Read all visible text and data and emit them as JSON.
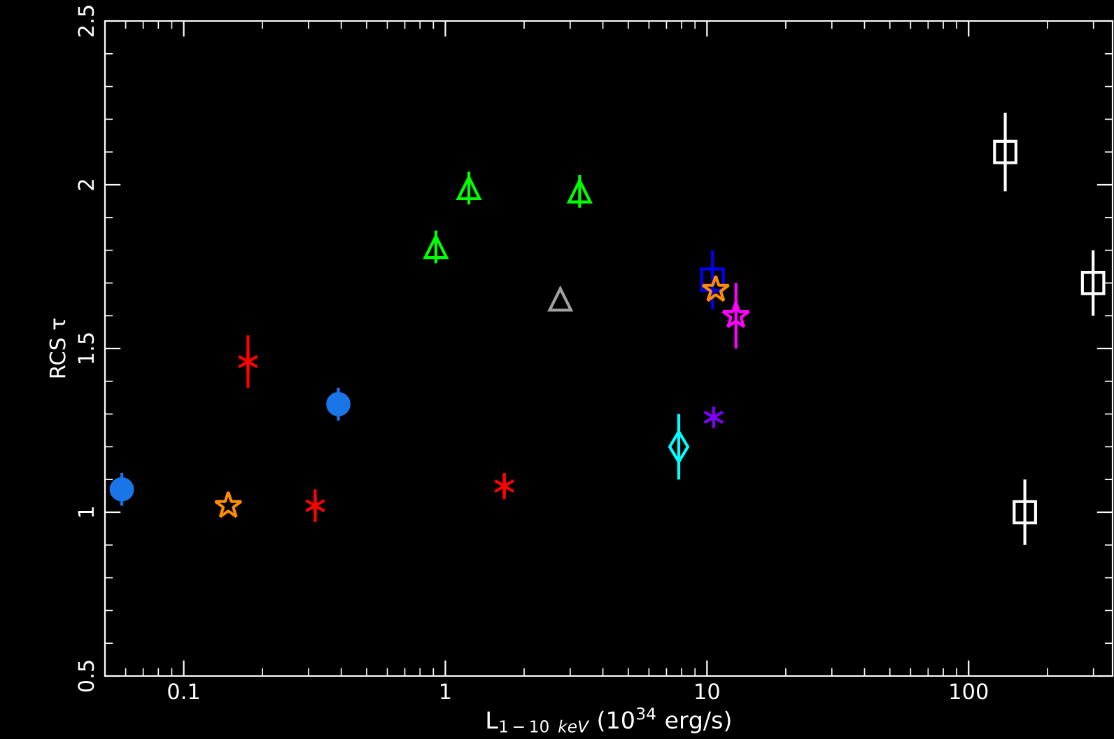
{
  "chart_data": {
    "type": "scatter",
    "xlabel": "L$_{1−10}$ $_{keV}$ (10$^{34}$ erg/s)",
    "ylabel": "RCS τ",
    "log": "x",
    "xlim": [
      0.05,
      355
    ],
    "ylim": [
      0.5,
      2.5
    ],
    "xticks": [
      0.1,
      1,
      10,
      100
    ],
    "yticks": [
      0.5,
      1,
      1.5,
      2,
      2.5
    ],
    "grid": false,
    "legend": false,
    "series": [
      {
        "color": "#1a75e8",
        "marker": "circle",
        "x": [
          0.058,
          0.39
        ],
        "values": [
          1.07,
          1.33
        ],
        "errors": [
          0.05,
          0.05
        ]
      },
      {
        "color": "#ff0000",
        "marker": "cross",
        "x": [
          0.176,
          0.318,
          1.68
        ],
        "values": [
          1.46,
          1.02,
          1.08
        ],
        "errors": [
          0.08,
          0.05,
          0.04
        ]
      },
      {
        "color": "#00ff00",
        "marker": "triangle",
        "x": [
          0.92,
          1.23,
          3.26
        ],
        "values": [
          1.81,
          1.99,
          1.98
        ],
        "errors": [
          0.05,
          0.05,
          0.05
        ]
      },
      {
        "color": "#a0a0a0",
        "marker": "triangle",
        "x": [
          2.75
        ],
        "values": [
          1.65
        ]
      },
      {
        "color": "#00ffff",
        "marker": "diamond",
        "x": [
          7.8
        ],
        "values": [
          1.2
        ],
        "errors": [
          0.1
        ]
      },
      {
        "color": "#8000ff",
        "marker": "cross",
        "x": [
          10.6
        ],
        "values": [
          1.29
        ]
      },
      {
        "color": "#0000ff",
        "marker": "square",
        "x": [
          10.5
        ],
        "values": [
          1.71
        ],
        "errors": [
          0.09
        ]
      },
      {
        "color": "#ff8c00",
        "marker": "star",
        "x": [
          0.148,
          10.8
        ],
        "values": [
          1.02,
          1.68
        ]
      },
      {
        "color": "#ff00ff",
        "marker": "star",
        "x": [
          12.9
        ],
        "values": [
          1.6
        ],
        "errors": [
          0.1
        ]
      },
      {
        "color": "#ffffff",
        "marker": "square",
        "x": [
          138,
          164,
          299
        ],
        "values": [
          2.1,
          1.0,
          1.7
        ],
        "errors": [
          0.12,
          0.1,
          0.1
        ]
      }
    ]
  }
}
